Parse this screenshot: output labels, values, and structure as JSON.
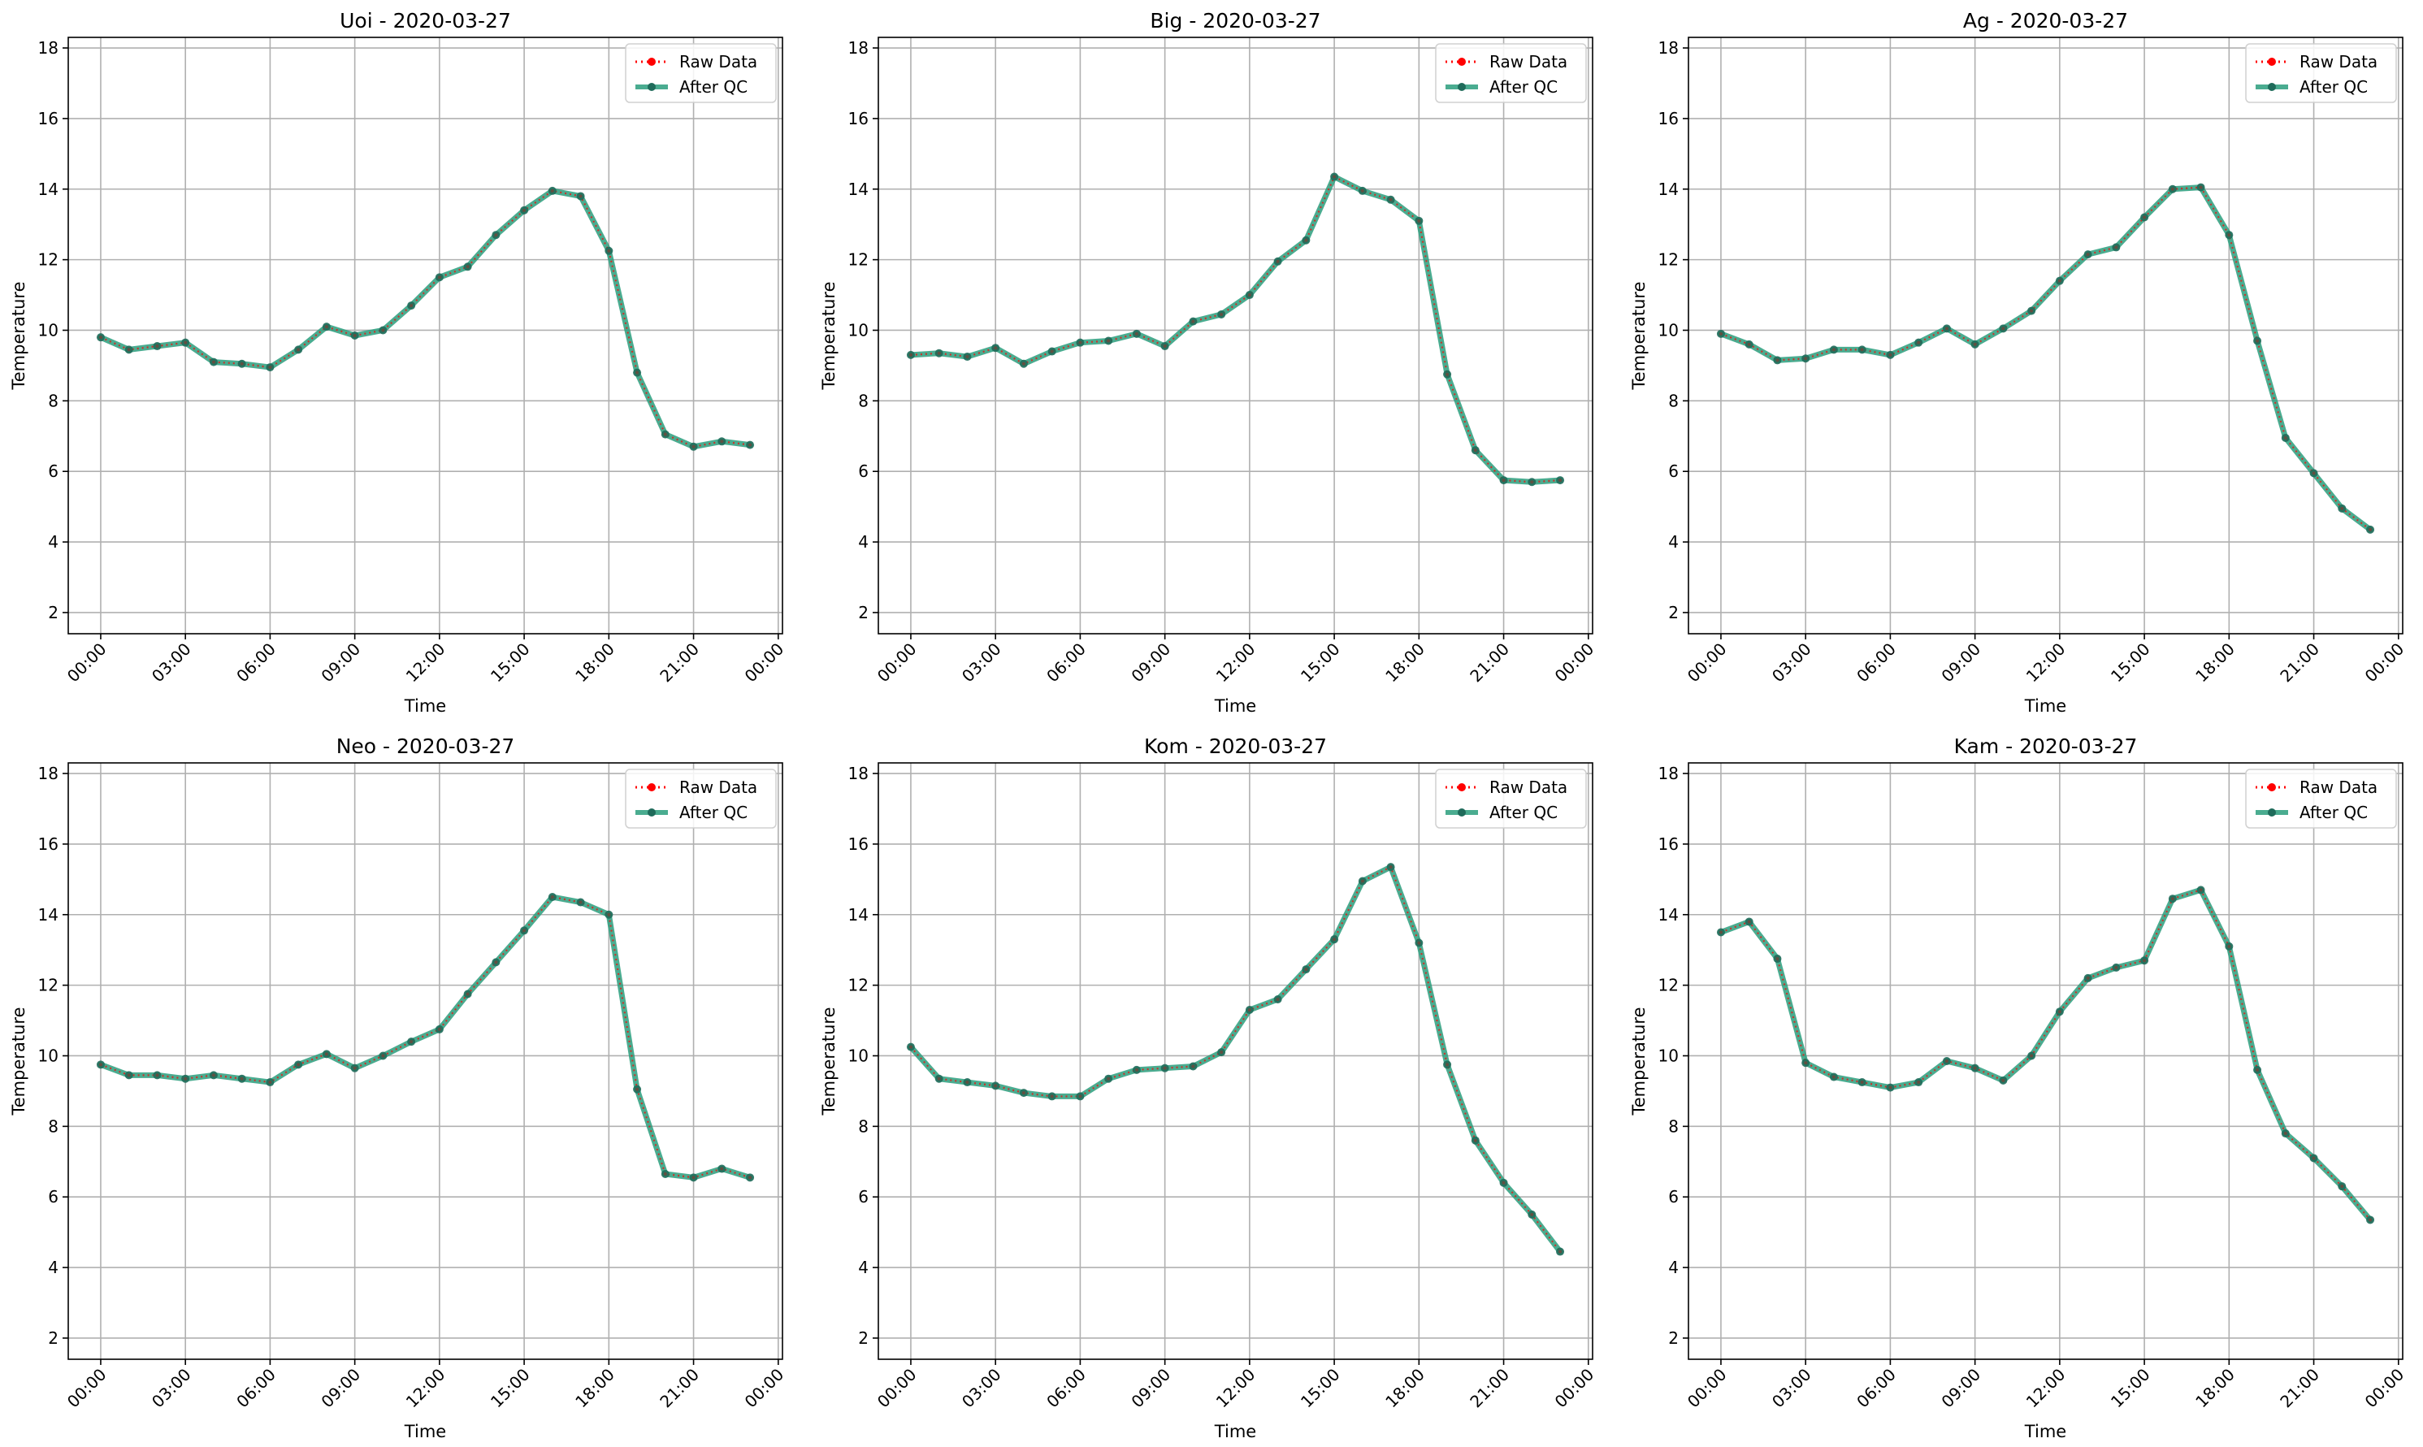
{
  "figure": {
    "legend_labels": {
      "raw": "Raw Data",
      "qc": "After QC"
    },
    "colors": {
      "raw": "#ff0000",
      "qc": "#2a9d7c",
      "marker": "#1f6b5a",
      "grid": "#b0b0b0"
    }
  },
  "chart_data": [
    {
      "type": "line",
      "title": "Uoi - 2020-03-27",
      "xlabel": "Time",
      "ylabel": "Temperature",
      "xticks": [
        "00:00",
        "03:00",
        "06:00",
        "09:00",
        "12:00",
        "15:00",
        "18:00",
        "21:00",
        "00:00"
      ],
      "xlim_hours": [
        -1.15,
        24.15
      ],
      "yticks": [
        2,
        4,
        6,
        8,
        10,
        12,
        14,
        16,
        18
      ],
      "ylim": [
        1.4,
        18.3
      ],
      "grid": true,
      "legend": "top-right",
      "x_hours": [
        0,
        1,
        2,
        3,
        4,
        5,
        6,
        7,
        8,
        9,
        10,
        11,
        12,
        13,
        14,
        15,
        16,
        17,
        18,
        19,
        20,
        21,
        22,
        23
      ],
      "series": [
        {
          "name": "Raw Data",
          "values": [
            9.8,
            9.45,
            9.55,
            9.65,
            9.1,
            9.05,
            8.95,
            9.45,
            10.1,
            9.85,
            10.0,
            10.7,
            11.5,
            11.8,
            12.7,
            13.4,
            13.95,
            13.8,
            12.25,
            8.8,
            7.05,
            6.7,
            6.85,
            6.75
          ]
        },
        {
          "name": "After QC",
          "values": [
            9.8,
            9.45,
            9.55,
            9.65,
            9.1,
            9.05,
            8.95,
            9.45,
            10.1,
            9.85,
            10.0,
            10.7,
            11.5,
            11.8,
            12.7,
            13.4,
            13.95,
            13.8,
            12.25,
            8.8,
            7.05,
            6.7,
            6.85,
            6.75
          ]
        }
      ]
    },
    {
      "type": "line",
      "title": "Big - 2020-03-27",
      "xlabel": "Time",
      "ylabel": "Temperature",
      "xticks": [
        "00:00",
        "03:00",
        "06:00",
        "09:00",
        "12:00",
        "15:00",
        "18:00",
        "21:00",
        "00:00"
      ],
      "xlim_hours": [
        -1.15,
        24.15
      ],
      "yticks": [
        2,
        4,
        6,
        8,
        10,
        12,
        14,
        16,
        18
      ],
      "ylim": [
        1.4,
        18.3
      ],
      "grid": true,
      "legend": "top-right",
      "x_hours": [
        0,
        1,
        2,
        3,
        4,
        5,
        6,
        7,
        8,
        9,
        10,
        11,
        12,
        13,
        14,
        15,
        16,
        17,
        18,
        19,
        20,
        21,
        22,
        23
      ],
      "series": [
        {
          "name": "Raw Data",
          "values": [
            9.3,
            9.35,
            9.25,
            9.5,
            9.05,
            9.4,
            9.65,
            9.7,
            9.9,
            9.55,
            10.25,
            10.45,
            11.0,
            11.95,
            12.55,
            14.35,
            13.95,
            13.7,
            13.1,
            8.75,
            6.6,
            5.75,
            5.7,
            5.75
          ]
        },
        {
          "name": "After QC",
          "values": [
            9.3,
            9.35,
            9.25,
            9.5,
            9.05,
            9.4,
            9.65,
            9.7,
            9.9,
            9.55,
            10.25,
            10.45,
            11.0,
            11.95,
            12.55,
            14.35,
            13.95,
            13.7,
            13.1,
            8.75,
            6.6,
            5.75,
            5.7,
            5.75
          ]
        }
      ]
    },
    {
      "type": "line",
      "title": "Ag - 2020-03-27",
      "xlabel": "Time",
      "ylabel": "Temperature",
      "xticks": [
        "00:00",
        "03:00",
        "06:00",
        "09:00",
        "12:00",
        "15:00",
        "18:00",
        "21:00",
        "00:00"
      ],
      "xlim_hours": [
        -1.15,
        24.15
      ],
      "yticks": [
        2,
        4,
        6,
        8,
        10,
        12,
        14,
        16,
        18
      ],
      "ylim": [
        1.4,
        18.3
      ],
      "grid": true,
      "legend": "top-right",
      "x_hours": [
        0,
        1,
        2,
        3,
        4,
        5,
        6,
        7,
        8,
        9,
        10,
        11,
        12,
        13,
        14,
        15,
        16,
        17,
        18,
        19,
        20,
        21,
        22,
        23
      ],
      "series": [
        {
          "name": "Raw Data",
          "values": [
            9.9,
            9.6,
            9.15,
            9.2,
            9.45,
            9.45,
            9.3,
            9.65,
            10.05,
            9.6,
            10.05,
            10.55,
            11.4,
            12.15,
            12.35,
            13.2,
            14.0,
            14.05,
            12.7,
            9.7,
            6.95,
            5.95,
            4.95,
            4.35
          ]
        },
        {
          "name": "After QC",
          "values": [
            9.9,
            9.6,
            9.15,
            9.2,
            9.45,
            9.45,
            9.3,
            9.65,
            10.05,
            9.6,
            10.05,
            10.55,
            11.4,
            12.15,
            12.35,
            13.2,
            14.0,
            14.05,
            12.7,
            9.7,
            6.95,
            5.95,
            4.95,
            4.35
          ]
        }
      ]
    },
    {
      "type": "line",
      "title": "Neo - 2020-03-27",
      "xlabel": "Time",
      "ylabel": "Temperature",
      "xticks": [
        "00:00",
        "03:00",
        "06:00",
        "09:00",
        "12:00",
        "15:00",
        "18:00",
        "21:00",
        "00:00"
      ],
      "xlim_hours": [
        -1.15,
        24.15
      ],
      "yticks": [
        2,
        4,
        6,
        8,
        10,
        12,
        14,
        16,
        18
      ],
      "ylim": [
        1.4,
        18.3
      ],
      "grid": true,
      "legend": "top-right",
      "x_hours": [
        0,
        1,
        2,
        3,
        4,
        5,
        6,
        7,
        8,
        9,
        10,
        11,
        12,
        13,
        14,
        15,
        16,
        17,
        18,
        19,
        20,
        21,
        22,
        23
      ],
      "series": [
        {
          "name": "Raw Data",
          "values": [
            9.75,
            9.45,
            9.45,
            9.35,
            9.45,
            9.35,
            9.25,
            9.75,
            10.05,
            9.65,
            10.0,
            10.4,
            10.75,
            11.75,
            12.65,
            13.55,
            14.5,
            14.35,
            14.0,
            9.05,
            6.65,
            6.55,
            6.8,
            6.55
          ]
        },
        {
          "name": "After QC",
          "values": [
            9.75,
            9.45,
            9.45,
            9.35,
            9.45,
            9.35,
            9.25,
            9.75,
            10.05,
            9.65,
            10.0,
            10.4,
            10.75,
            11.75,
            12.65,
            13.55,
            14.5,
            14.35,
            14.0,
            9.05,
            6.65,
            6.55,
            6.8,
            6.55
          ]
        }
      ]
    },
    {
      "type": "line",
      "title": "Kom - 2020-03-27",
      "xlabel": "Time",
      "ylabel": "Temperature",
      "xticks": [
        "00:00",
        "03:00",
        "06:00",
        "09:00",
        "12:00",
        "15:00",
        "18:00",
        "21:00",
        "00:00"
      ],
      "xlim_hours": [
        -1.15,
        24.15
      ],
      "yticks": [
        2,
        4,
        6,
        8,
        10,
        12,
        14,
        16,
        18
      ],
      "ylim": [
        1.4,
        18.3
      ],
      "grid": true,
      "legend": "top-right",
      "x_hours": [
        0,
        1,
        2,
        3,
        4,
        5,
        6,
        7,
        8,
        9,
        10,
        11,
        12,
        13,
        14,
        15,
        16,
        17,
        18,
        19,
        20,
        21,
        22,
        23
      ],
      "series": [
        {
          "name": "Raw Data",
          "values": [
            10.25,
            9.35,
            9.25,
            9.15,
            8.95,
            8.85,
            8.85,
            9.35,
            9.6,
            9.65,
            9.7,
            10.1,
            11.3,
            11.6,
            12.45,
            13.3,
            14.95,
            15.35,
            13.2,
            9.75,
            7.6,
            6.4,
            5.5,
            4.45
          ]
        },
        {
          "name": "After QC",
          "values": [
            10.25,
            9.35,
            9.25,
            9.15,
            8.95,
            8.85,
            8.85,
            9.35,
            9.6,
            9.65,
            9.7,
            10.1,
            11.3,
            11.6,
            12.45,
            13.3,
            14.95,
            15.35,
            13.2,
            9.75,
            7.6,
            6.4,
            5.5,
            4.45
          ]
        }
      ]
    },
    {
      "type": "line",
      "title": "Kam - 2020-03-27",
      "xlabel": "Time",
      "ylabel": "Temperature",
      "xticks": [
        "00:00",
        "03:00",
        "06:00",
        "09:00",
        "12:00",
        "15:00",
        "18:00",
        "21:00",
        "00:00"
      ],
      "xlim_hours": [
        -1.15,
        24.15
      ],
      "yticks": [
        2,
        4,
        6,
        8,
        10,
        12,
        14,
        16,
        18
      ],
      "ylim": [
        1.4,
        18.3
      ],
      "grid": true,
      "legend": "top-right",
      "x_hours": [
        0,
        1,
        2,
        3,
        4,
        5,
        6,
        7,
        8,
        9,
        10,
        11,
        12,
        13,
        14,
        15,
        16,
        17,
        18,
        19,
        20,
        21,
        22,
        23
      ],
      "series": [
        {
          "name": "Raw Data",
          "values": [
            13.5,
            13.8,
            12.75,
            9.8,
            9.4,
            9.25,
            9.1,
            9.25,
            9.85,
            9.65,
            9.3,
            10.0,
            11.25,
            12.2,
            12.5,
            12.7,
            14.45,
            14.7,
            13.1,
            9.6,
            7.8,
            7.1,
            6.3,
            5.35
          ]
        },
        {
          "name": "After QC",
          "values": [
            13.5,
            13.8,
            12.75,
            9.8,
            9.4,
            9.25,
            9.1,
            9.25,
            9.85,
            9.65,
            9.3,
            10.0,
            11.25,
            12.2,
            12.5,
            12.7,
            14.45,
            14.7,
            13.1,
            9.6,
            7.8,
            7.1,
            6.3,
            5.35
          ]
        }
      ]
    }
  ]
}
